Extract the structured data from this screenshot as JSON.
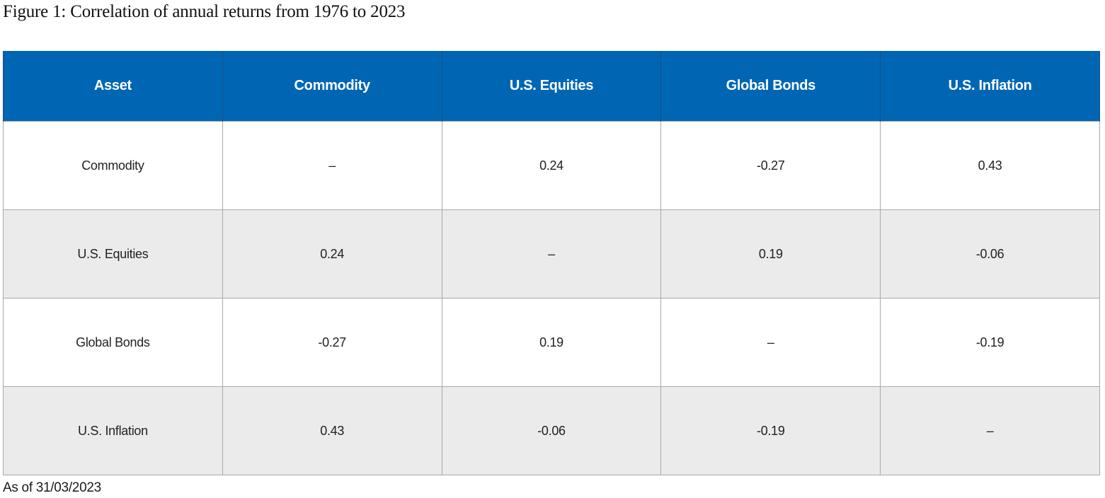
{
  "title": "Figure 1: Correlation of annual returns from 1976 to 2023",
  "footnote": "As of 31/03/2023",
  "colors": {
    "header_background": "#0066b3",
    "header_text": "#ffffff",
    "alternate_row": "#ebebeb",
    "grid_line": "#a9a9a9"
  },
  "chart_data": {
    "type": "table",
    "title": "Figure 1: Correlation of annual returns from 1976 to 2023",
    "columns": [
      "Asset",
      "Commodity",
      "U.S. Equities",
      "Global Bonds",
      "U.S. Inflation"
    ],
    "rows": [
      [
        "Commodity",
        "–",
        "0.24",
        "-0.27",
        "0.43"
      ],
      [
        "U.S. Equities",
        "0.24",
        "–",
        "0.19",
        "-0.06"
      ],
      [
        "Global Bonds",
        "-0.27",
        "0.19",
        "–",
        "-0.19"
      ],
      [
        "U.S. Inflation",
        "0.43",
        "-0.06",
        "-0.19",
        "–"
      ]
    ]
  }
}
